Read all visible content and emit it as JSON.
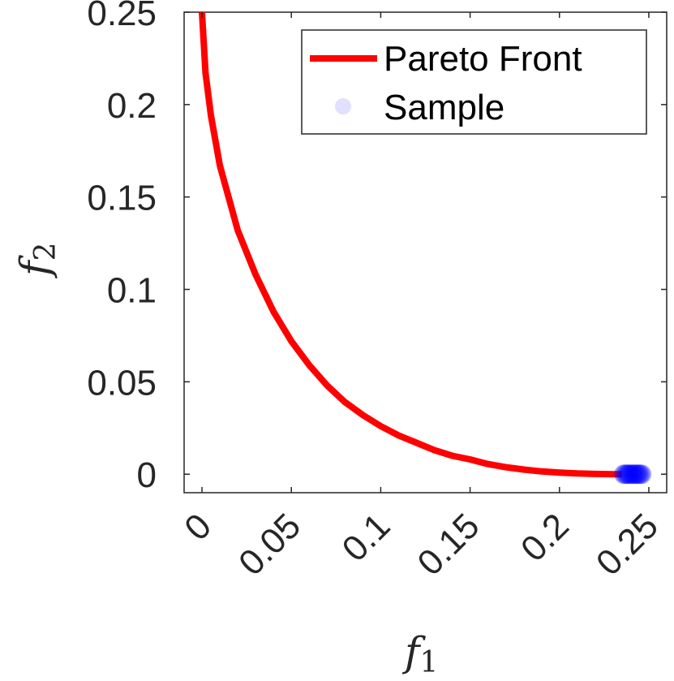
{
  "chart_data": {
    "type": "line",
    "xlabel": "f",
    "xlabel_sub": "1",
    "ylabel": "f",
    "ylabel_sub": "2",
    "xlim": [
      -0.01,
      0.26
    ],
    "ylim": [
      -0.01,
      0.25
    ],
    "xticks": [
      0,
      0.05,
      0.1,
      0.15,
      0.2,
      0.25
    ],
    "xtick_labels": [
      "0",
      "0.05",
      "0.1",
      "0.15",
      "0.2",
      "0.25"
    ],
    "yticks": [
      0,
      0.05,
      0.1,
      0.15,
      0.2,
      0.25
    ],
    "ytick_labels": [
      "0",
      "0.05",
      "0.1",
      "0.15",
      "0.2",
      "0.25"
    ],
    "grid": false,
    "legend_position": "top-right",
    "series": [
      {
        "name": "Pareto Front",
        "kind": "line",
        "color": "#ff0000",
        "x": [
          0,
          0.002,
          0.005,
          0.01,
          0.02,
          0.03,
          0.04,
          0.05,
          0.06,
          0.07,
          0.08,
          0.09,
          0.1,
          0.11,
          0.12,
          0.13,
          0.14,
          0.15,
          0.16,
          0.17,
          0.18,
          0.19,
          0.2,
          0.21,
          0.22,
          0.23,
          0.235
        ],
        "y": [
          0.25,
          0.217,
          0.194,
          0.167,
          0.132,
          0.108,
          0.088,
          0.072,
          0.059,
          0.048,
          0.039,
          0.032,
          0.026,
          0.021,
          0.017,
          0.013,
          0.01,
          0.008,
          0.0055,
          0.0038,
          0.0025,
          0.0015,
          0.0009,
          0.0004,
          0.00015,
          2e-05,
          0
        ]
      },
      {
        "name": "Sample",
        "kind": "scatter",
        "color": "#0000ff",
        "x": [
          0.236,
          0.237,
          0.238,
          0.239,
          0.24,
          0.241,
          0.242,
          0.243,
          0.244,
          0.245,
          0.246
        ],
        "y": [
          0,
          0,
          0,
          0,
          0,
          0,
          0,
          0,
          0,
          0,
          0
        ]
      }
    ]
  }
}
